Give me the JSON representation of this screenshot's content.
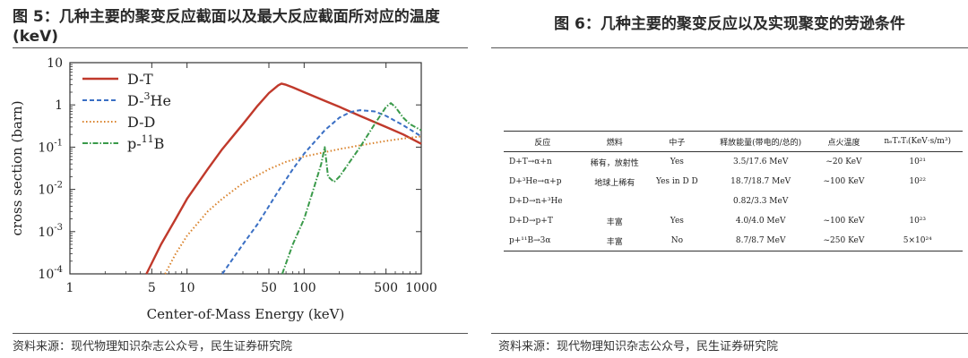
{
  "left": {
    "title": "图 5：几种主要的聚变反应截面以及最大反应截面所对应的温度(keV)",
    "source": "资料来源：现代物理知识杂志公众号，民生证券研究院"
  },
  "right": {
    "title": "图 6：几种主要的聚变反应以及实现聚变的劳逊条件",
    "source": "资料来源：现代物理知识杂志公众号，民生证券研究院",
    "table": {
      "headers": [
        "反应",
        "燃料",
        "中子",
        "释放能量(带电的/总的)",
        "点火温度",
        "nₑTₑTᵢ(KeV·s/m³)"
      ],
      "rows": [
        [
          "D+T→α+n",
          "稀有，放射性",
          "Yes",
          "3.5/17.6 MeV",
          "~20 KeV",
          "10²¹"
        ],
        [
          "D+³He→α+p",
          "地球上稀有",
          "Yes in D D",
          "18.7/18.7 MeV",
          "~100 KeV",
          "10²²"
        ],
        [
          "D+D→n+³He",
          "",
          "",
          "0.82/3.3 MeV",
          "",
          ""
        ],
        [
          "D+D→p+T",
          "丰富",
          "Yes",
          "4.0/4.0 MeV",
          "~100 KeV",
          "10²³"
        ],
        [
          "p+¹¹B→3α",
          "丰富",
          "No",
          "8.7/8.7 MeV",
          "~250 KeV",
          "5×10²⁴"
        ]
      ]
    }
  },
  "chart_data": {
    "type": "line",
    "title": "",
    "xlabel": "Center-of-Mass Energy (keV)",
    "ylabel": "cross section (barn)",
    "xscale": "log",
    "yscale": "log",
    "xlim": [
      1,
      1000
    ],
    "ylim": [
      0.0001,
      10
    ],
    "xticks": [
      1,
      5,
      10,
      50,
      100,
      500,
      1000
    ],
    "xtick_labels": [
      "1",
      "5",
      "10",
      "50",
      "100",
      "500",
      "1000"
    ],
    "yticks": [
      0.0001,
      0.001,
      0.01,
      0.1,
      1,
      10
    ],
    "ytick_labels": [
      [
        "10",
        "-4"
      ],
      [
        "10",
        "-3"
      ],
      [
        "10",
        "-2"
      ],
      [
        "10",
        "-1"
      ],
      [
        "1",
        ""
      ],
      [
        "10",
        ""
      ]
    ],
    "legend_position": "top-left",
    "series": [
      {
        "name": "D-T",
        "name_html": [
          "D-T",
          ""
        ],
        "color": "#c0392b",
        "dash": "",
        "x": [
          4.5,
          6,
          8,
          10,
          15,
          20,
          30,
          40,
          50,
          60,
          64,
          70,
          80,
          100,
          150,
          200,
          300,
          500,
          700,
          1000
        ],
        "y": [
          0.0001,
          0.0005,
          0.002,
          0.006,
          0.03,
          0.09,
          0.35,
          0.95,
          1.9,
          2.9,
          3.2,
          3.0,
          2.6,
          2.0,
          1.25,
          0.9,
          0.55,
          0.3,
          0.2,
          0.12
        ]
      },
      {
        "name": "D-3He",
        "name_html": [
          "D-",
          "3",
          "He"
        ],
        "color": "#3a6fc4",
        "dash": "5,3",
        "x": [
          20,
          30,
          40,
          50,
          60,
          80,
          100,
          150,
          200,
          250,
          300,
          400,
          500,
          700,
          1000
        ],
        "y": [
          0.0001,
          0.0005,
          0.0015,
          0.004,
          0.009,
          0.03,
          0.07,
          0.25,
          0.5,
          0.68,
          0.75,
          0.7,
          0.55,
          0.33,
          0.18
        ]
      },
      {
        "name": "D-D",
        "name_html": [
          "D-D",
          ""
        ],
        "color": "#d9822b",
        "dash": "1.5,2.5",
        "x": [
          6.5,
          8,
          10,
          15,
          20,
          30,
          50,
          70,
          100,
          200,
          300,
          500,
          700,
          1000
        ],
        "y": [
          0.0001,
          0.0003,
          0.0008,
          0.003,
          0.006,
          0.014,
          0.03,
          0.045,
          0.06,
          0.09,
          0.11,
          0.14,
          0.16,
          0.18
        ]
      },
      {
        "name": "p-11B",
        "name_html": [
          "p-",
          "11",
          "B"
        ],
        "color": "#3a9a4a",
        "dash": "6,2,1.5,2",
        "x": [
          65,
          80,
          100,
          120,
          140,
          150,
          160,
          180,
          200,
          300,
          400,
          500,
          550,
          600,
          700,
          800,
          1000
        ],
        "y": [
          0.0001,
          0.0005,
          0.002,
          0.01,
          0.04,
          0.1,
          0.02,
          0.015,
          0.02,
          0.1,
          0.35,
          0.9,
          1.1,
          0.9,
          0.5,
          0.35,
          0.25
        ]
      }
    ]
  }
}
